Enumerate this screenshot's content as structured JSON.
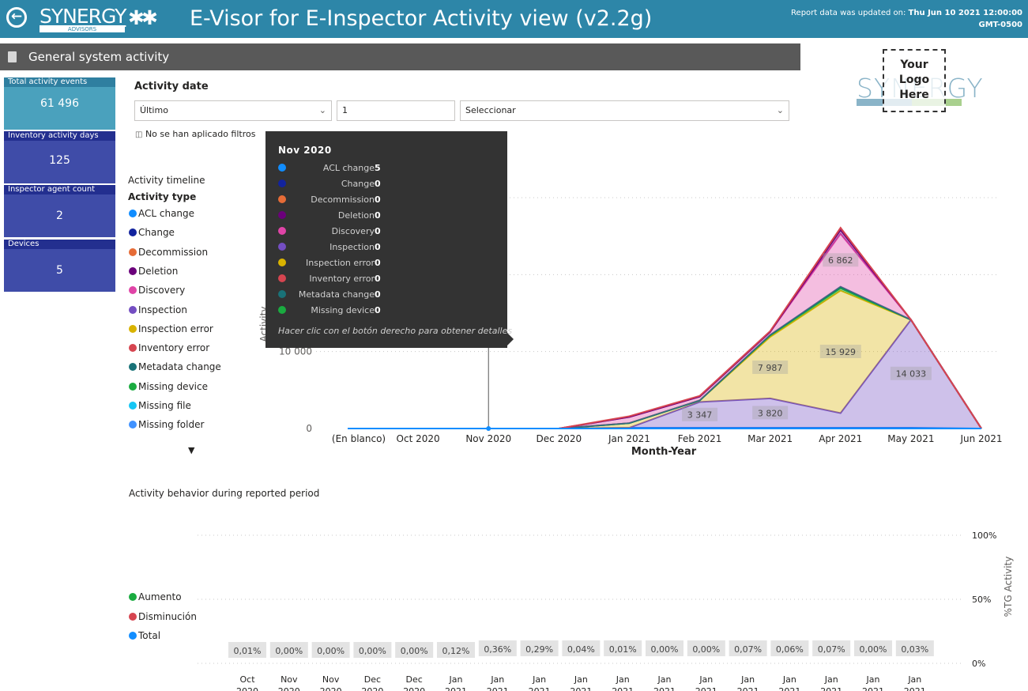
{
  "header": {
    "back_icon": "arrow-left-circle-icon",
    "logo_text": "SYNERGY",
    "logo_sub": "ADVISORS",
    "logo_icon": "puzzle-icon",
    "title": "E-Visor for E-Inspector Activity view (v2.2g)",
    "updated_prefix": "Report data was updated on:",
    "updated_value": "Thu Jun 10 2021 12:00:00 GMT-0500"
  },
  "section": {
    "title": "General system activity",
    "icon": "document-icon"
  },
  "logo_placeholder": {
    "bg_text": "SYNERGY",
    "lines": [
      "Your",
      "Logo",
      "Here"
    ]
  },
  "kpis": [
    {
      "label": "Total activity events",
      "value": "61 496"
    },
    {
      "label": "Inventory activity days",
      "value": "125"
    },
    {
      "label": "Inspector agent count",
      "value": "2"
    },
    {
      "label": "Devices",
      "value": "5"
    }
  ],
  "filters": {
    "title": "Activity date",
    "period_select": "Último",
    "count_value": "1",
    "unit_select": "Seleccionar",
    "no_filters_text": "No se han aplicado filtros",
    "filter_icon": "filter-icon"
  },
  "timeline": {
    "title": "Activity timeline",
    "legend_title": "Activity type",
    "more_icon": "caret-down-icon"
  },
  "activity_types": [
    {
      "name": "ACL change",
      "color": "#118dff"
    },
    {
      "name": "Change",
      "color": "#12239e"
    },
    {
      "name": "Decommission",
      "color": "#e66c37"
    },
    {
      "name": "Deletion",
      "color": "#6b007b"
    },
    {
      "name": "Discovery",
      "color": "#e044a7"
    },
    {
      "name": "Inspection",
      "color": "#744ec2"
    },
    {
      "name": "Inspection error",
      "color": "#d9b300"
    },
    {
      "name": "Inventory error",
      "color": "#d64550"
    },
    {
      "name": "Metadata change",
      "color": "#197278"
    },
    {
      "name": "Missing device",
      "color": "#1aab40"
    },
    {
      "name": "Missing file",
      "color": "#15c6f4"
    },
    {
      "name": "Missing folder",
      "color": "#4092ff"
    }
  ],
  "tooltip": {
    "title": "Nov 2020",
    "rows": [
      {
        "label": "ACL change",
        "value": "5",
        "color": "#118dff"
      },
      {
        "label": "Change",
        "value": "0",
        "color": "#12239e"
      },
      {
        "label": "Decommission",
        "value": "0",
        "color": "#e66c37"
      },
      {
        "label": "Deletion",
        "value": "0",
        "color": "#6b007b"
      },
      {
        "label": "Discovery",
        "value": "0",
        "color": "#e044a7"
      },
      {
        "label": "Inspection",
        "value": "0",
        "color": "#744ec2"
      },
      {
        "label": "Inspection error",
        "value": "0",
        "color": "#d9b300"
      },
      {
        "label": "Inventory error",
        "value": "0",
        "color": "#d64550"
      },
      {
        "label": "Metadata change",
        "value": "0",
        "color": "#197278"
      },
      {
        "label": "Missing device",
        "value": "0",
        "color": "#1aab40"
      }
    ],
    "hint": "Hacer clic con el botón derecho para obtener detalles"
  },
  "chart_data": [
    {
      "type": "area",
      "title": "Activity timeline",
      "xlabel": "Month-Year",
      "ylabel": "Activity",
      "stacked": true,
      "categories": [
        "(En blanco)",
        "Oct 2020",
        "Nov 2020",
        "Dec 2020",
        "Jan 2021",
        "Feb 2021",
        "Mar 2021",
        "Apr 2021",
        "May 2021",
        "Jun 2021"
      ],
      "y_ticks": [
        "0",
        "10 000"
      ],
      "ylim": [
        0,
        30000
      ],
      "grid": true,
      "series": [
        {
          "name": "ACL change",
          "values": [
            0,
            0,
            5,
            0,
            100,
            100,
            100,
            100,
            100,
            0
          ]
        },
        {
          "name": "Inspection",
          "values": [
            0,
            0,
            0,
            0,
            0,
            3347,
            3820,
            1900,
            14033,
            0
          ]
        },
        {
          "name": "Inspection error",
          "values": [
            0,
            0,
            0,
            0,
            600,
            200,
            7987,
            15929,
            0,
            0
          ]
        },
        {
          "name": "Missing device",
          "values": [
            0,
            0,
            0,
            0,
            0,
            0,
            200,
            300,
            0,
            0
          ]
        },
        {
          "name": "Metadata change",
          "values": [
            0,
            0,
            0,
            0,
            0,
            0,
            50,
            200,
            0,
            0
          ]
        },
        {
          "name": "Discovery",
          "values": [
            0,
            0,
            0,
            0,
            800,
            500,
            400,
            6862,
            0,
            0
          ]
        },
        {
          "name": "Deletion",
          "values": [
            0,
            0,
            0,
            0,
            0,
            0,
            0,
            500,
            0,
            0
          ]
        },
        {
          "name": "Inventory error",
          "values": [
            0,
            0,
            0,
            0,
            100,
            100,
            100,
            300,
            0,
            0
          ]
        }
      ],
      "data_labels": [
        {
          "category": "Feb 2021",
          "series": "Inspection",
          "text": "3 347"
        },
        {
          "category": "Mar 2021",
          "series": "Inspection",
          "text": "3 820"
        },
        {
          "category": "Mar 2021",
          "series": "Inspection error",
          "text": "7 987"
        },
        {
          "category": "Apr 2021",
          "series": "Inspection error",
          "text": "15 929"
        },
        {
          "category": "Apr 2021",
          "series": "Discovery",
          "text": "6 862"
        },
        {
          "category": "May 2021",
          "series": "Inspection",
          "text": "14 033"
        }
      ],
      "highlight_category": "Nov 2020"
    },
    {
      "type": "bar",
      "title": "Activity behavior during reported period",
      "ylabel": "%TG Activity",
      "y_ticks": [
        "100%",
        "50%",
        "0%"
      ],
      "legend": [
        {
          "name": "Aumento",
          "color": "#1aab40"
        },
        {
          "name": "Disminución",
          "color": "#d64550"
        },
        {
          "name": "Total",
          "color": "#118dff"
        }
      ],
      "categories": [
        [
          "Oct",
          "2020"
        ],
        [
          "Nov",
          "2020"
        ],
        [
          "Nov",
          "2020"
        ],
        [
          "Dec",
          "2020"
        ],
        [
          "Dec",
          "2020"
        ],
        [
          "Jan",
          "2021"
        ],
        [
          "Jan",
          "2021"
        ],
        [
          "Jan",
          "2021"
        ],
        [
          "Jan",
          "2021"
        ],
        [
          "Jan",
          "2021"
        ],
        [
          "Jan",
          "2021"
        ],
        [
          "Jan",
          "2021"
        ],
        [
          "Jan",
          "2021"
        ],
        [
          "Jan",
          "2021"
        ],
        [
          "Jan",
          "2021"
        ],
        [
          "Jan",
          "2021"
        ],
        [
          "Jan",
          "2021"
        ]
      ],
      "values": [
        "0,01%",
        "0,00%",
        "0,00%",
        "0,00%",
        "0,00%",
        "0,12%",
        "0,36%",
        "0,29%",
        "0,04%",
        "0,01%",
        "0,00%",
        "0,00%",
        "0,07%",
        "0,06%",
        "0,07%",
        "0,00%",
        "0,03%"
      ]
    }
  ]
}
